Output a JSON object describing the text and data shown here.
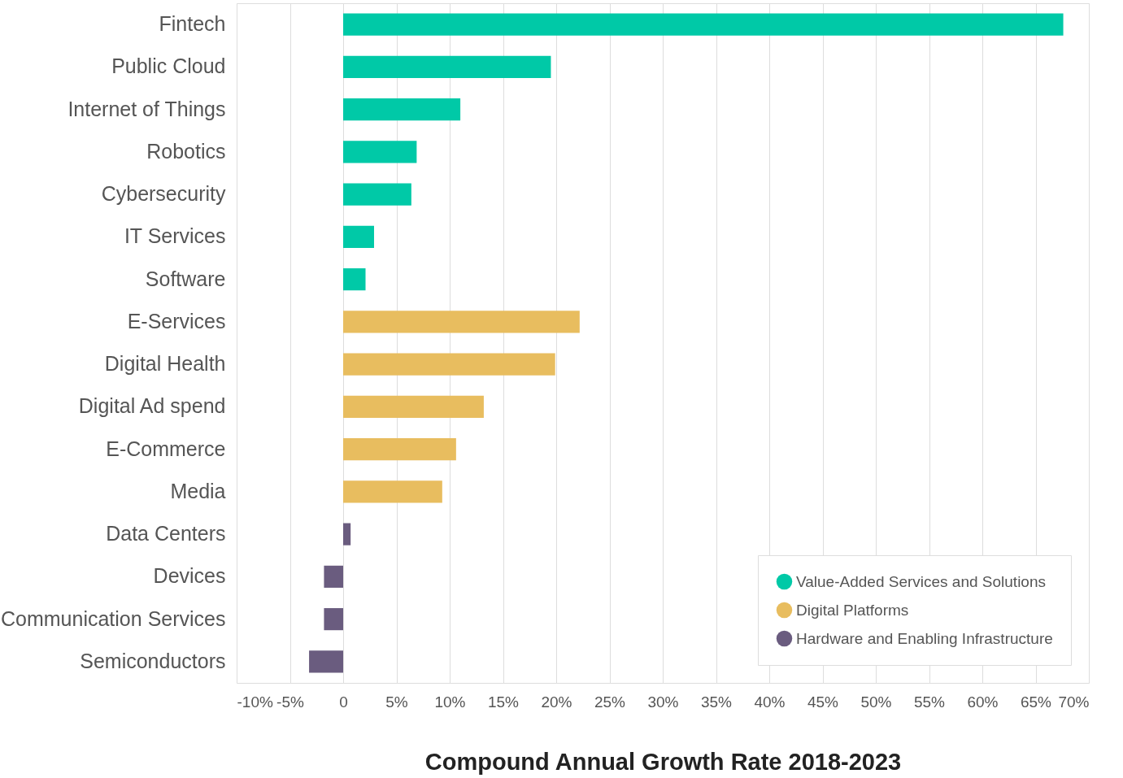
{
  "chart_data": {
    "type": "bar",
    "orientation": "horizontal",
    "xlabel": "Compound Annual Growth Rate 2018-2023",
    "categories": [
      "Fintech",
      "Public Cloud",
      "Internet of Things",
      "Robotics",
      "Cybersecurity",
      "IT Services",
      "Software",
      "E-Services",
      "Digital Health",
      "Digital Ad spend",
      "E-Commerce",
      "Media",
      "Data Centers",
      "Devices",
      "Communication Services",
      "Semiconductors"
    ],
    "series": [
      {
        "name": "Value-Added Services and Solutions",
        "color": "#00c9a7",
        "values": [
          67.6,
          19.5,
          11.0,
          6.9,
          6.4,
          2.9,
          2.1,
          null,
          null,
          null,
          null,
          null,
          null,
          null,
          null,
          null
        ]
      },
      {
        "name": "Digital Platforms",
        "color": "#e8bd5f",
        "values": [
          null,
          null,
          null,
          null,
          null,
          null,
          null,
          22.2,
          19.9,
          13.2,
          10.6,
          9.3,
          null,
          null,
          null,
          null
        ]
      },
      {
        "name": "Hardware and Enabling Infrastructure",
        "color": "#6a5c7f",
        "values": [
          null,
          null,
          null,
          null,
          null,
          null,
          null,
          null,
          null,
          null,
          null,
          null,
          0.7,
          -1.8,
          -1.8,
          -3.2
        ]
      }
    ],
    "xlim": [
      -10,
      70
    ],
    "xticks": [
      {
        "value": -10,
        "label": "-10%"
      },
      {
        "value": -5,
        "label": "-5%"
      },
      0,
      {
        "value": 5,
        "label": "5%"
      },
      {
        "value": 10,
        "label": "10%"
      },
      {
        "value": 15,
        "label": "15%"
      },
      {
        "value": 20,
        "label": "20%"
      },
      {
        "value": 25,
        "label": "25%"
      },
      {
        "value": 30,
        "label": "30%"
      },
      {
        "value": 35,
        "label": "35%"
      },
      {
        "value": 40,
        "label": "40%"
      },
      {
        "value": 45,
        "label": "45%"
      },
      {
        "value": 50,
        "label": "50%"
      },
      {
        "value": 55,
        "label": "55%"
      },
      {
        "value": 60,
        "label": "60%"
      },
      {
        "value": 65,
        "label": "65%"
      },
      {
        "value": 70,
        "label": "70%"
      }
    ],
    "grid": "x",
    "legend": "bottom right"
  }
}
